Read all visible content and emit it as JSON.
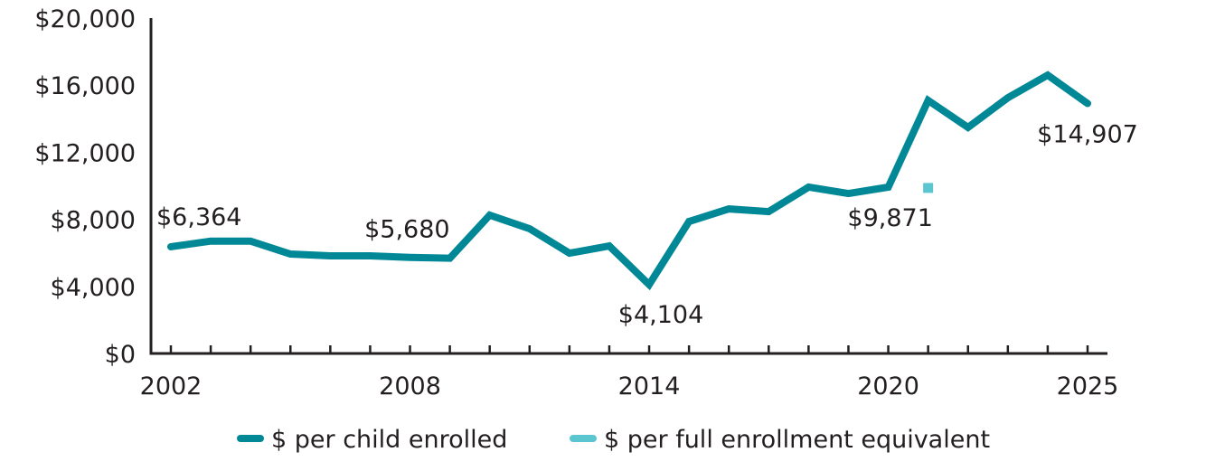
{
  "chart_data": {
    "type": "line",
    "title": "",
    "xlabel": "",
    "ylabel": "",
    "x": [
      2002,
      2003,
      2004,
      2005,
      2006,
      2007,
      2008,
      2009,
      2010,
      2011,
      2012,
      2013,
      2014,
      2015,
      2016,
      2017,
      2018,
      2019,
      2020,
      2021,
      2022,
      2023,
      2024,
      2025
    ],
    "xlim": [
      2002,
      2025
    ],
    "ylim": [
      0,
      20000
    ],
    "x_tick_labels": [
      "2002",
      "2008",
      "2014",
      "2020",
      "2025"
    ],
    "x_tick_values": [
      2002,
      2008,
      2014,
      2020,
      2025
    ],
    "y_tick_labels": [
      "$0",
      "$4,000",
      "$8,000",
      "$12,000",
      "$16,000",
      "$20,000"
    ],
    "y_tick_values": [
      0,
      4000,
      8000,
      12000,
      16000,
      20000
    ],
    "grid": false,
    "legend_position": "bottom",
    "series": [
      {
        "name": "$ per child enrolled",
        "color": "#008896",
        "style": "line",
        "values": [
          6364,
          6700,
          6700,
          5930,
          5820,
          5820,
          5730,
          5680,
          8250,
          7440,
          5980,
          6410,
          4104,
          7870,
          8620,
          8460,
          9920,
          9540,
          9920,
          15090,
          13480,
          15250,
          16600,
          14907
        ]
      },
      {
        "name": "$ per full enrollment equivalent",
        "color": "#5bc6d0",
        "style": "marker",
        "x": [
          2021
        ],
        "values": [
          9871
        ]
      }
    ],
    "annotations": [
      {
        "series": 0,
        "x": 2002,
        "text": "$6,364"
      },
      {
        "series": 0,
        "x": 2009,
        "text": "$5,680"
      },
      {
        "series": 0,
        "x": 2014,
        "text": "$4,104"
      },
      {
        "series": 1,
        "x": 2021,
        "text": "$9,871"
      },
      {
        "series": 0,
        "x": 2025,
        "text": "$14,907"
      }
    ]
  }
}
